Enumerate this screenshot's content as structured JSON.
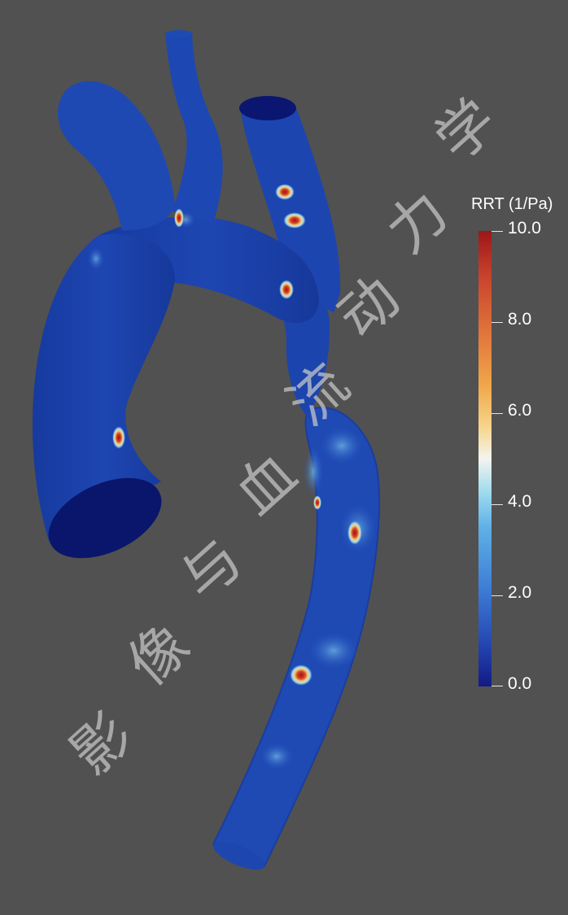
{
  "colorbar": {
    "title": "RRT (1/Pa)",
    "ticks": [
      "10.0",
      "8.0",
      "6.0",
      "4.0",
      "2.0",
      "0.0"
    ],
    "min": 0.0,
    "max": 10.0,
    "colormap": [
      "#131a85",
      "#2649b5",
      "#5fb1e6",
      "#f4f4ef",
      "#f0a74c",
      "#c8432d",
      "#9e1618"
    ]
  },
  "watermark": {
    "chars": [
      "影",
      "像",
      "与",
      "血",
      "流",
      "动",
      "力",
      "学"
    ]
  },
  "colors": {
    "background": "#515151",
    "vessel": "#1a3fa8",
    "hotspot": "#b71c1c"
  }
}
